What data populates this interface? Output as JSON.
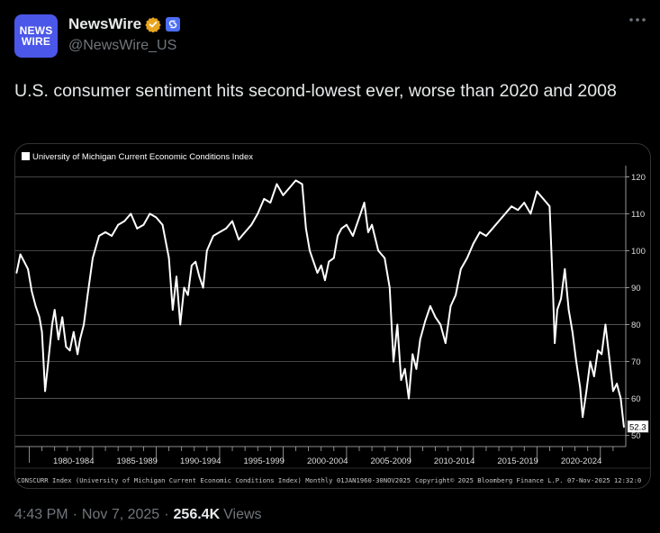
{
  "account": {
    "avatar_line1": "NEWS",
    "avatar_line2": "WIRE",
    "display_name": "NewsWire",
    "handle": "@NewsWire_US",
    "avatar_color": "#4b57e8",
    "verified_color": "#e8a520",
    "affiliate_color": "#4c6ef5"
  },
  "tweet": {
    "text": "U.S. consumer sentiment hits second-lowest ever, worse than 2020 and 2008",
    "time": "4:43 PM",
    "date": "Nov 7, 2025",
    "views_count": "256.4K",
    "views_label": "Views"
  },
  "icons": {
    "more": "more-horizontal-icon",
    "verified": "verified-badge-icon",
    "affiliate": "affiliate-badge-icon"
  },
  "chart_data": {
    "type": "line",
    "legend": "University of Michigan Current Economic Conditions Index",
    "legend_placement": "top-left",
    "ylim": [
      47,
      123
    ],
    "yticks": [
      50,
      60,
      70,
      80,
      90,
      100,
      110,
      120
    ],
    "x_categories": [
      "1980-1984",
      "1985-1989",
      "1990-1994",
      "1995-1999",
      "2000-2004",
      "2005-2009",
      "2010-2014",
      "2015-2019",
      "2020-2024"
    ],
    "last_value_label": "52.3",
    "footer_left": "CONSCURR Index (University of Michigan Current Economic Conditions Index) Monthly 01JAN1960-30NOV2025",
    "footer_mid": "Copyright© 2025 Bloomberg Finance L.P.",
    "footer_right": "07-Nov-2025 12:32:0",
    "x": [
      1978.0,
      1978.3,
      1978.6,
      1978.9,
      1979.2,
      1979.5,
      1979.8,
      1980.0,
      1980.25,
      1980.5,
      1980.8,
      1981.0,
      1981.3,
      1981.6,
      1981.9,
      1982.2,
      1982.5,
      1982.8,
      1983.0,
      1983.3,
      1983.6,
      1984.0,
      1984.5,
      1985.0,
      1985.5,
      1986.0,
      1986.5,
      1987.0,
      1987.5,
      1988.0,
      1988.5,
      1989.0,
      1989.5,
      1990.0,
      1990.3,
      1990.6,
      1990.9,
      1991.2,
      1991.5,
      1991.8,
      1992.1,
      1992.4,
      1992.7,
      1993.0,
      1993.5,
      1994.0,
      1994.5,
      1995.0,
      1995.5,
      1996.0,
      1996.5,
      1997.0,
      1997.5,
      1998.0,
      1998.5,
      1999.0,
      1999.5,
      2000.0,
      2000.5,
      2000.8,
      2001.1,
      2001.4,
      2001.7,
      2002.0,
      2002.3,
      2002.6,
      2003.0,
      2003.3,
      2003.6,
      2004.0,
      2004.5,
      2005.0,
      2005.4,
      2005.7,
      2006.0,
      2006.5,
      2007.0,
      2007.4,
      2007.7,
      2008.0,
      2008.3,
      2008.6,
      2008.9,
      2009.2,
      2009.5,
      2009.8,
      2010.2,
      2010.6,
      2011.0,
      2011.4,
      2011.8,
      2012.2,
      2012.6,
      2013.0,
      2013.5,
      2014.0,
      2014.5,
      2015.0,
      2015.5,
      2016.0,
      2016.5,
      2017.0,
      2017.5,
      2018.0,
      2018.5,
      2019.0,
      2019.5,
      2020.0,
      2020.25,
      2020.4,
      2020.6,
      2020.9,
      2021.2,
      2021.5,
      2021.8,
      2022.1,
      2022.4,
      2022.6,
      2022.9,
      2023.2,
      2023.5,
      2023.8,
      2024.1,
      2024.4,
      2024.7,
      2025.0,
      2025.3,
      2025.6,
      2025.85
    ],
    "y": [
      94,
      99,
      97,
      95,
      89,
      85,
      82,
      78,
      62,
      70,
      80,
      84,
      76,
      82,
      74,
      73,
      78,
      72,
      76,
      80,
      88,
      98,
      104,
      105,
      104,
      107,
      108,
      110,
      106,
      107,
      110,
      109,
      107,
      98,
      84,
      93,
      80,
      90,
      88,
      96,
      97,
      93,
      90,
      100,
      104,
      105,
      106,
      108,
      103,
      105,
      107,
      110,
      114,
      113,
      118,
      115,
      117,
      119,
      118,
      106,
      100,
      97,
      94,
      96,
      92,
      97,
      98,
      104,
      106,
      107,
      104,
      109,
      113,
      105,
      107,
      100,
      98,
      90,
      70,
      80,
      65,
      68,
      60,
      72,
      68,
      76,
      81,
      85,
      82,
      80,
      75,
      85,
      88,
      95,
      98,
      102,
      105,
      104,
      106,
      108,
      110,
      112,
      111,
      113,
      110,
      116,
      114,
      112,
      90,
      75,
      84,
      87,
      95,
      84,
      78,
      70,
      63,
      55,
      62,
      70,
      66,
      73,
      72,
      80,
      71,
      62,
      64,
      60,
      52.3
    ]
  }
}
